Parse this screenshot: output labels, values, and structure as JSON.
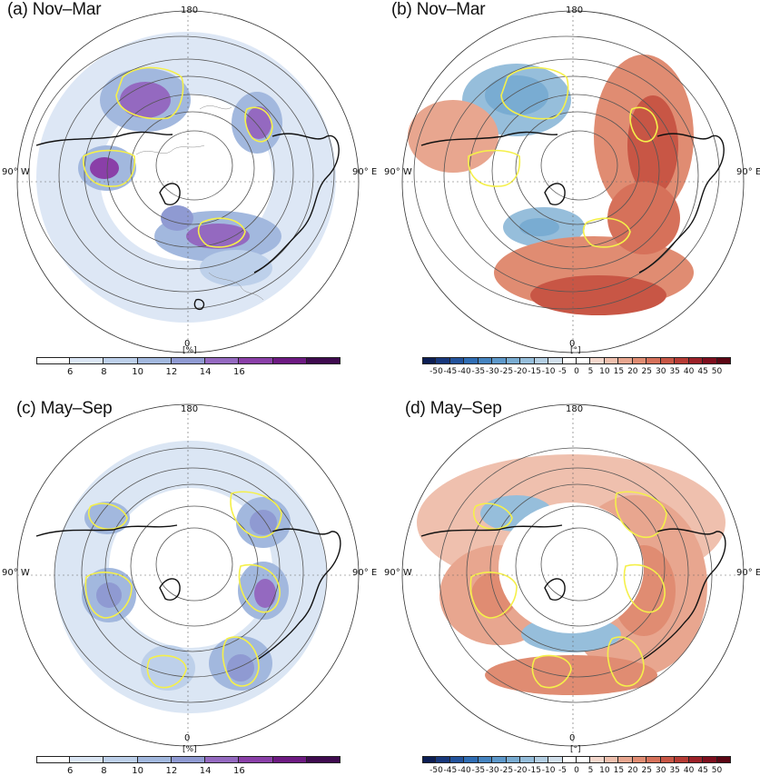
{
  "panels": [
    {
      "id": "a",
      "title": "(a) Nov–Mar",
      "kind": "freq"
    },
    {
      "id": "b",
      "title": "(b) Nov–Mar",
      "kind": "angle"
    },
    {
      "id": "c",
      "title": "(c) May–Sep",
      "kind": "freq"
    },
    {
      "id": "d",
      "title": "(d) May–Sep",
      "kind": "angle"
    }
  ],
  "map_labels": {
    "top": "180",
    "bottom": "0",
    "left": "90° W",
    "right": "90° E"
  },
  "colorbars": {
    "freq": {
      "unit": "[%]",
      "ticks": [
        "6",
        "8",
        "10",
        "12",
        "14",
        "16"
      ],
      "colors": [
        "#ffffff",
        "#dbe6f4",
        "#bdd0ea",
        "#a2b8de",
        "#8f9ad2",
        "#9469c0",
        "#8a3fa8",
        "#6d1a82",
        "#3f0b4f"
      ]
    },
    "angle": {
      "unit": "[°]",
      "ticks": [
        "-50",
        "-45",
        "-40",
        "-35",
        "-30",
        "-25",
        "-20",
        "-15",
        "-10",
        "-5",
        "0",
        "5",
        "10",
        "15",
        "20",
        "25",
        "30",
        "35",
        "40",
        "45",
        "50"
      ],
      "colors": [
        "#0c1e54",
        "#18387c",
        "#23539c",
        "#2f6db4",
        "#4584c0",
        "#5d98ca",
        "#79acd2",
        "#96bedb",
        "#b4cfe3",
        "#d2e0ec",
        "#ffffff",
        "#ffffff",
        "#f4d8cd",
        "#efc0ae",
        "#e8a68f",
        "#e08c72",
        "#d6715a",
        "#c85645",
        "#b63b34",
        "#9c2128",
        "#7e0f1e",
        "#5c0614"
      ]
    }
  }
}
